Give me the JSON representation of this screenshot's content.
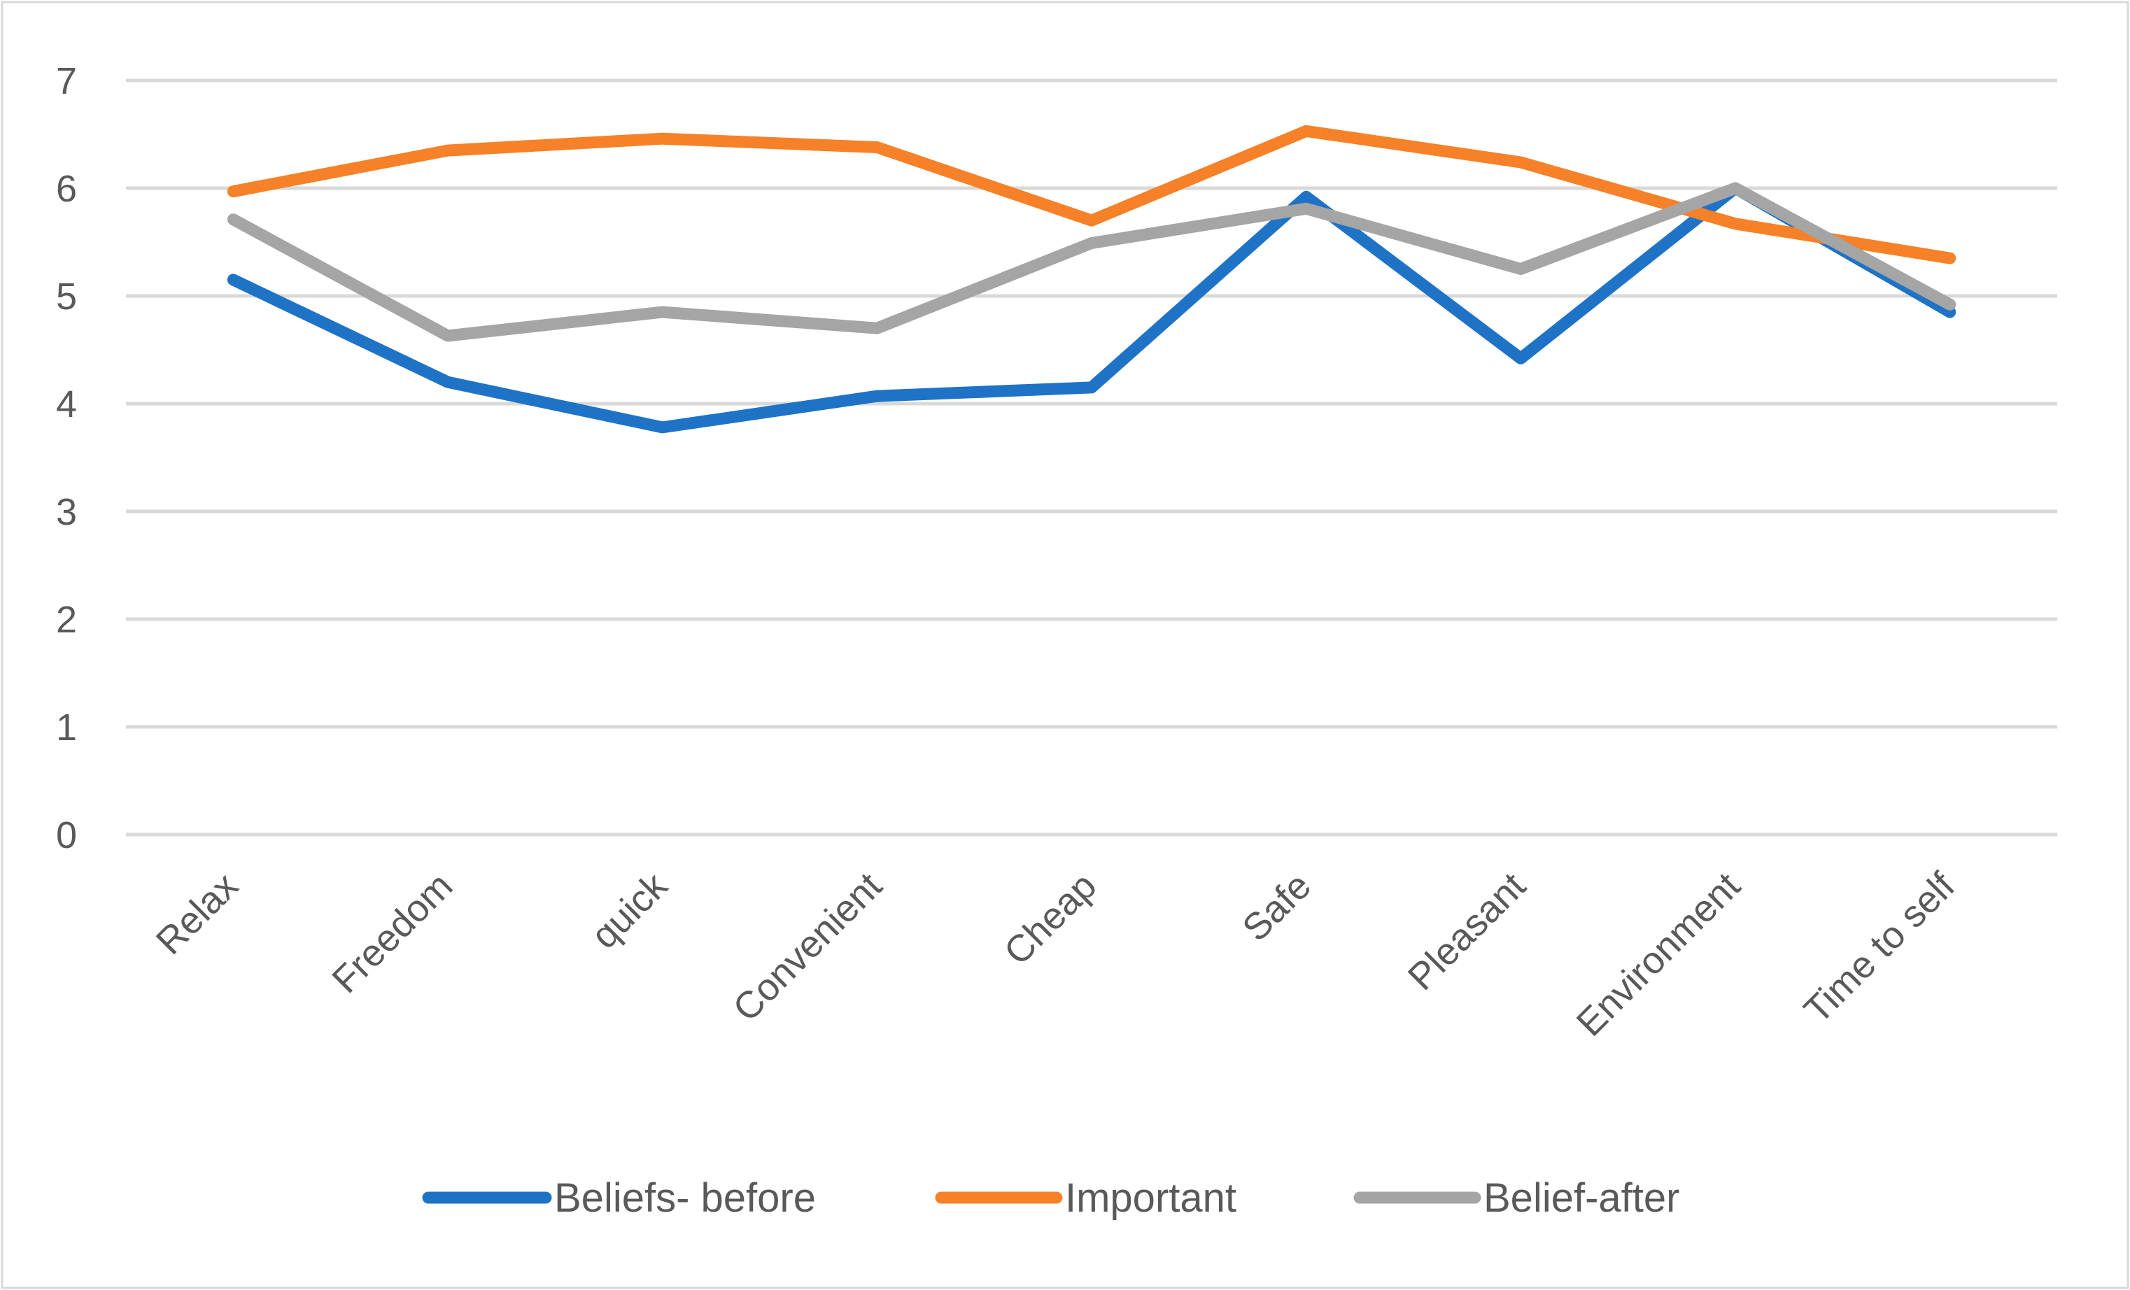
{
  "chart_data": {
    "type": "line",
    "title": "",
    "xlabel": "",
    "ylabel": "",
    "ylim": [
      0,
      7
    ],
    "yticks": [
      0,
      1,
      2,
      3,
      4,
      5,
      6,
      7
    ],
    "grid": true,
    "legend_position": "bottom",
    "categories": [
      "Relax",
      "Freedom",
      "quick",
      "Convenient",
      "Cheap",
      "Safe",
      "Pleasant",
      "Environment",
      "Time to self"
    ],
    "series": [
      {
        "name": "Beliefs- before",
        "color": "#1f73c6",
        "values": [
          5.15,
          4.2,
          3.78,
          4.07,
          4.15,
          5.92,
          4.42,
          6.0,
          4.85
        ]
      },
      {
        "name": "Important",
        "color": "#f68128",
        "values": [
          5.97,
          6.35,
          6.46,
          6.38,
          5.7,
          6.53,
          6.24,
          5.67,
          5.35
        ]
      },
      {
        "name": "Belief-after",
        "color": "#a5a5a5",
        "values": [
          5.71,
          4.63,
          4.85,
          4.7,
          5.49,
          5.81,
          5.25,
          6.0,
          4.92
        ]
      }
    ]
  }
}
